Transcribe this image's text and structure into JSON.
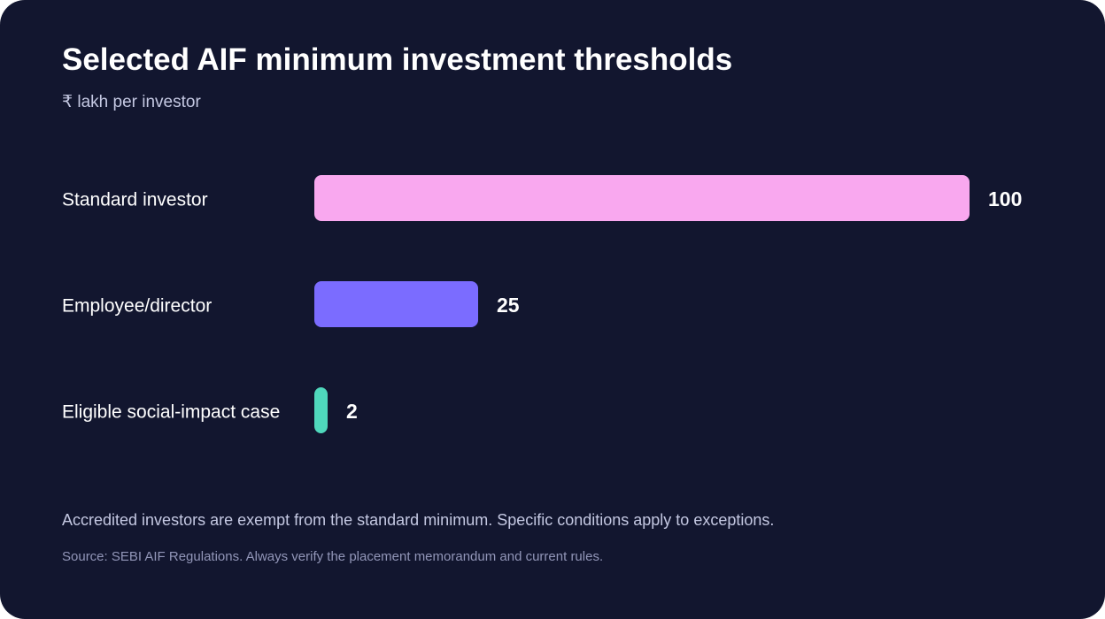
{
  "chart_data": {
    "type": "bar",
    "orientation": "horizontal",
    "title": "Selected AIF minimum investment thresholds",
    "subtitle": "₹ lakh per investor",
    "categories": [
      "Standard investor",
      "Employee/director",
      "Eligible social-impact case"
    ],
    "values": [
      100,
      25,
      2
    ],
    "value_labels": [
      "100",
      "25",
      "2"
    ],
    "colors": [
      "#f9a8ef",
      "#7b6cff",
      "#4fd8bc"
    ],
    "xlim": [
      0,
      100
    ],
    "grid": false,
    "legend": "none"
  },
  "footer": {
    "note": "Accredited investors are exempt from the standard minimum. Specific conditions apply to exceptions.",
    "source": "Source: SEBI AIF Regulations. Always verify the placement memorandum and current rules."
  }
}
